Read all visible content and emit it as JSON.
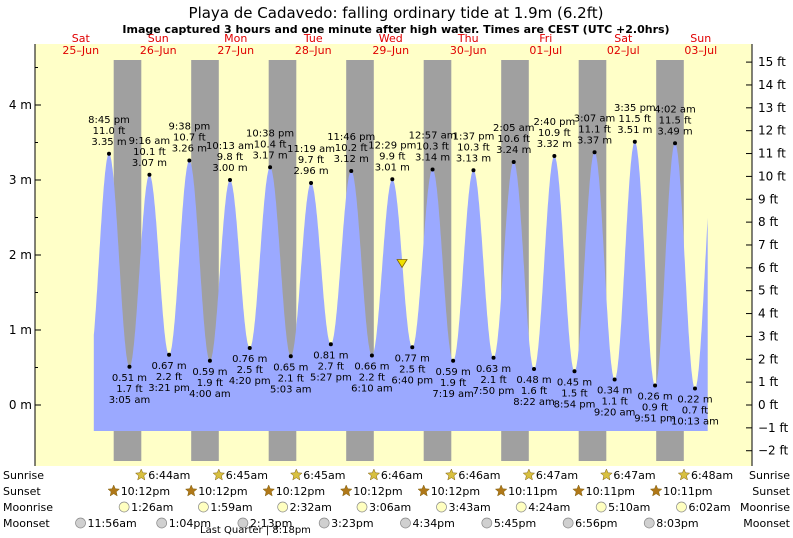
{
  "chart_data": {
    "type": "area",
    "title": "Playa de Cadavedo: falling  ordinary tide at 1.9m (6.2ft)",
    "subtitle": "Image captured 3 hours and one minute after high water. Times are CEST (UTC +2.0hrs)",
    "ylim_m": [
      -0.55,
      4.6
    ],
    "y_ticks_m": [
      "4 m",
      "3 m",
      "2 m",
      "1 m",
      "0 m"
    ],
    "y_ticks_ft": [
      "15 ft",
      "14 ft",
      "13 ft",
      "12 ft",
      "11 ft",
      "10 ft",
      "9 ft",
      "8 ft",
      "7 ft",
      "6 ft",
      "5 ft",
      "4 ft",
      "3 ft",
      "2 ft",
      "1 ft",
      "0 ft",
      "−1 ft",
      "−2 ft"
    ],
    "days": [
      {
        "day": "Sat",
        "date": "25–Jun"
      },
      {
        "day": "Sun",
        "date": "26–Jun"
      },
      {
        "day": "Mon",
        "date": "27–Jun"
      },
      {
        "day": "Tue",
        "date": "28–Jun"
      },
      {
        "day": "Wed",
        "date": "29–Jun"
      },
      {
        "day": "Thu",
        "date": "30–Jun"
      },
      {
        "day": "Fri",
        "date": "01–Jul"
      },
      {
        "day": "Sat",
        "date": "02–Jul"
      },
      {
        "day": "Sun",
        "date": "03–Jul"
      }
    ],
    "tides": [
      {
        "type": "high",
        "time": "8:45 pm",
        "ft": "11.0 ft",
        "m": 3.35,
        "m_label": "3.35 m"
      },
      {
        "type": "low",
        "time": "3:05 am",
        "ft": "1.7 ft",
        "m": 0.51,
        "m_label": "0.51 m"
      },
      {
        "type": "high",
        "time": "9:16 am",
        "ft": "10.1 ft",
        "m": 3.07,
        "m_label": "3.07 m"
      },
      {
        "type": "low",
        "time": "3:21 pm",
        "ft": "2.2 ft",
        "m": 0.67,
        "m_label": "0.67 m"
      },
      {
        "type": "high",
        "time": "9:38 pm",
        "ft": "10.7 ft",
        "m": 3.26,
        "m_label": "3.26 m"
      },
      {
        "type": "low",
        "time": "4:00 am",
        "ft": "1.9 ft",
        "m": 0.59,
        "m_label": "0.59 m"
      },
      {
        "type": "high",
        "time": "10:13 am",
        "ft": "9.8 ft",
        "m": 3.0,
        "m_label": "3.00 m"
      },
      {
        "type": "low",
        "time": "4:20 pm",
        "ft": "2.5 ft",
        "m": 0.76,
        "m_label": "0.76 m"
      },
      {
        "type": "high",
        "time": "10:38 pm",
        "ft": "10.4 ft",
        "m": 3.17,
        "m_label": "3.17 m"
      },
      {
        "type": "low",
        "time": "5:03 am",
        "ft": "2.1 ft",
        "m": 0.65,
        "m_label": "0.65 m"
      },
      {
        "type": "high",
        "time": "11:19 am",
        "ft": "9.7 ft",
        "m": 2.96,
        "m_label": "2.96 m"
      },
      {
        "type": "low",
        "time": "5:27 pm",
        "ft": "2.7 ft",
        "m": 0.81,
        "m_label": "0.81 m"
      },
      {
        "type": "high",
        "time": "11:46 pm",
        "ft": "10.2 ft",
        "m": 3.12,
        "m_label": "3.12 m"
      },
      {
        "type": "low",
        "time": "6:10 am",
        "ft": "2.2 ft",
        "m": 0.66,
        "m_label": "0.66 m"
      },
      {
        "type": "high",
        "time": "12:29 pm",
        "ft": "9.9 ft",
        "m": 3.01,
        "m_label": "3.01 m"
      },
      {
        "type": "low",
        "time": "6:40 pm",
        "ft": "2.5 ft",
        "m": 0.77,
        "m_label": "0.77 m"
      },
      {
        "type": "high",
        "time": "12:57 am",
        "ft": "10.3 ft",
        "m": 3.14,
        "m_label": "3.14 m"
      },
      {
        "type": "low",
        "time": "7:19 am",
        "ft": "1.9 ft",
        "m": 0.59,
        "m_label": "0.59 m"
      },
      {
        "type": "high",
        "time": "1:37 pm",
        "ft": "10.3 ft",
        "m": 3.13,
        "m_label": "3.13 m"
      },
      {
        "type": "low",
        "time": "7:50 pm",
        "ft": "2.1 ft",
        "m": 0.63,
        "m_label": "0.63 m"
      },
      {
        "type": "high",
        "time": "2:05 am",
        "ft": "10.6 ft",
        "m": 3.24,
        "m_label": "3.24 m"
      },
      {
        "type": "low",
        "time": "8:22 am",
        "ft": "1.6 ft",
        "m": 0.48,
        "m_label": "0.48 m"
      },
      {
        "type": "high",
        "time": "2:40 pm",
        "ft": "10.9 ft",
        "m": 3.32,
        "m_label": "3.32 m"
      },
      {
        "type": "low",
        "time": "8:54 pm",
        "ft": "1.5 ft",
        "m": 0.45,
        "m_label": "0.45 m"
      },
      {
        "type": "high",
        "time": "3:07 am",
        "ft": "11.1 ft",
        "m": 3.37,
        "m_label": "3.37 m"
      },
      {
        "type": "low",
        "time": "9:20 am",
        "ft": "1.1 ft",
        "m": 0.34,
        "m_label": "0.34 m"
      },
      {
        "type": "high",
        "time": "3:35 pm",
        "ft": "11.5 ft",
        "m": 3.51,
        "m_label": "3.51 m"
      },
      {
        "type": "low",
        "time": "9:51 pm",
        "ft": "0.9 ft",
        "m": 0.26,
        "m_label": "0.26 m"
      },
      {
        "type": "high",
        "time": "4:02 am",
        "ft": "11.5 ft",
        "m": 3.49,
        "m_label": "3.49 m"
      },
      {
        "type": "low",
        "time": "10:13 am",
        "ft": "0.7 ft",
        "m": 0.22,
        "m_label": "0.22 m"
      }
    ],
    "current": {
      "m": 1.9
    },
    "rows": {
      "sunrise_label": "Sunrise",
      "sunset_label": "Sunset",
      "moonrise_label": "Moonrise",
      "moonset_label": "Moonset",
      "sunrise": [
        "6:44am",
        "6:45am",
        "6:45am",
        "6:46am",
        "6:46am",
        "6:47am",
        "6:47am",
        "6:48am"
      ],
      "sunset": [
        "10:12pm",
        "10:12pm",
        "10:12pm",
        "10:12pm",
        "10:12pm",
        "10:11pm",
        "10:11pm",
        "10:11pm"
      ],
      "moonrise": [
        "1:26am",
        "1:59am",
        "2:32am",
        "3:06am",
        "3:43am",
        "4:24am",
        "5:10am",
        "6:02am"
      ],
      "moonset": [
        "11:56am",
        "1:04pm",
        "2:13pm",
        "3:23pm",
        "4:34pm",
        "5:45pm",
        "6:56pm",
        "8:03pm"
      ],
      "phase_note": "Last Quarter | 8:18pm"
    },
    "colors": {
      "day_bg": "#ffffc8",
      "night_bg": "#a0a0a0",
      "water": "#9ba9ff",
      "day_label": "#e00000",
      "sunrise_star": "#d8c040",
      "sunset_star": "#b07818"
    }
  }
}
